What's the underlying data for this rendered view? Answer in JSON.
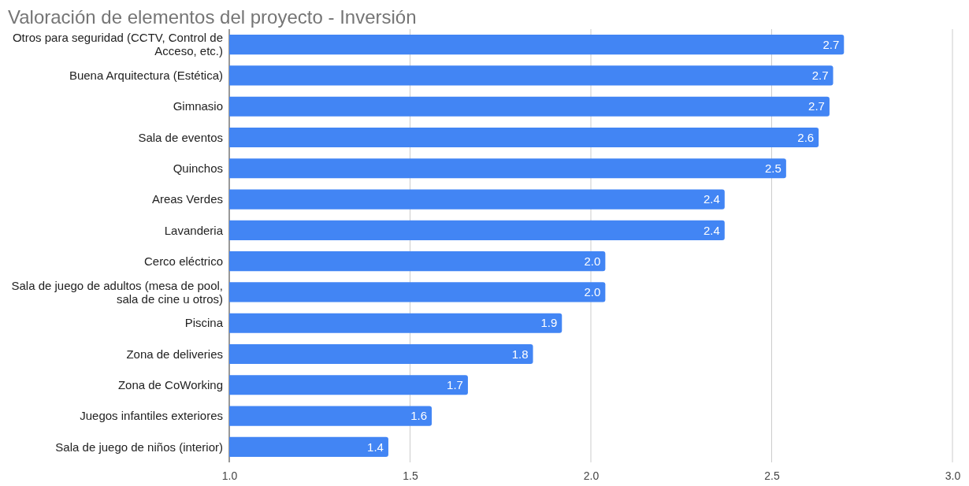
{
  "chart_data": {
    "type": "bar",
    "orientation": "horizontal",
    "title": "Valoración de elementos del proyecto - Inversión",
    "categories": [
      "Otros para seguridad (CCTV, Control de Acceso, etc.)",
      "Buena Arquitectura (Estética)",
      "Gimnasio",
      "Sala de eventos",
      "Quinchos",
      "Areas Verdes",
      "Lavanderia",
      "Cerco eléctrico",
      "Sala de juego de adultos (mesa de pool, sala de cine u otros)",
      "Piscina",
      "Zona de deliveries",
      "Zona de CoWorking",
      "Juegos infantiles exteriores",
      "Sala de juego de niños (interior)"
    ],
    "values": [
      2.7,
      2.67,
      2.66,
      2.63,
      2.54,
      2.37,
      2.37,
      2.04,
      2.04,
      1.92,
      1.84,
      1.66,
      1.56,
      1.44
    ],
    "value_labels": [
      "2.7",
      "2.7",
      "2.7",
      "2.6",
      "2.5",
      "2.4",
      "2.4",
      "2.0",
      "2.0",
      "1.9",
      "1.8",
      "1.7",
      "1.6",
      "1.4"
    ],
    "color": "#4285f4",
    "xlim": [
      1.0,
      3.0
    ],
    "xticks": [
      {
        "value": 1,
        "label": "1.0"
      },
      {
        "value": 1.5,
        "label": "1.5"
      },
      {
        "value": 2,
        "label": "2.0"
      },
      {
        "value": 2.5,
        "label": "2.5"
      },
      {
        "value": 3,
        "label": "3.0"
      }
    ],
    "grid": "x"
  }
}
